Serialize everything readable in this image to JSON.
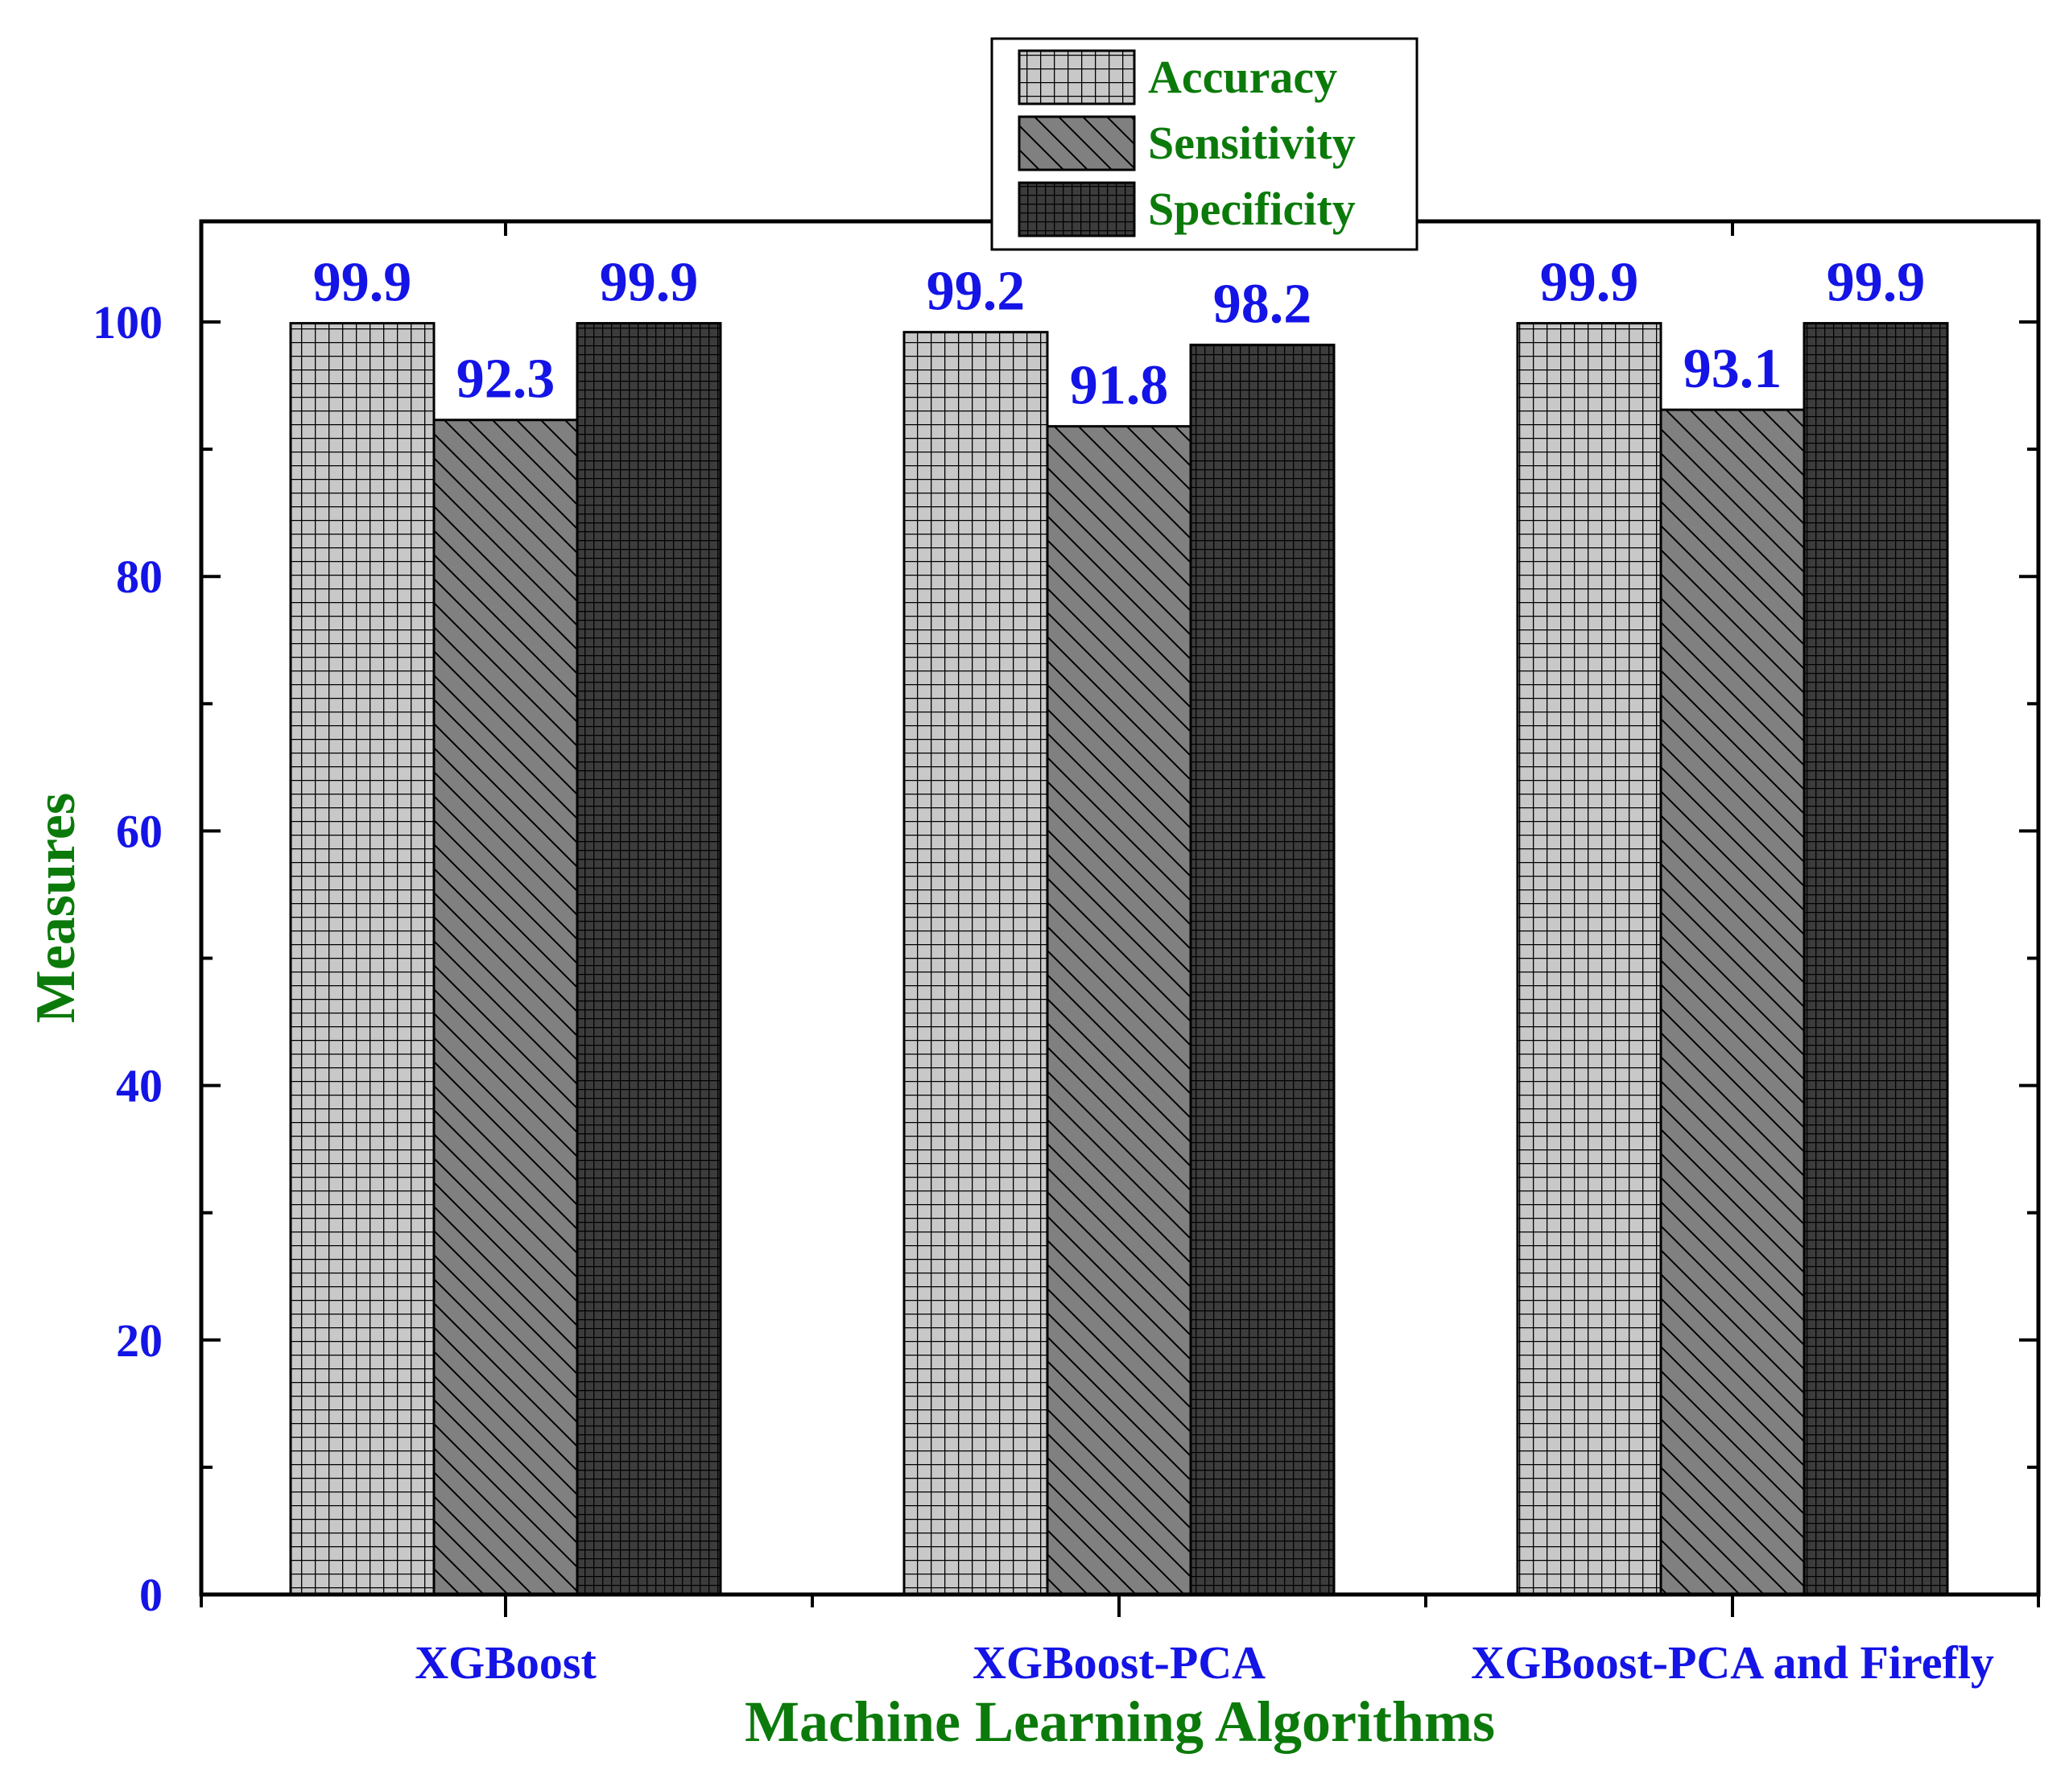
{
  "chart_data": {
    "type": "bar",
    "xlabel": "Machine Learning Algorithms",
    "ylabel": "Measures",
    "ylim": [
      0,
      108
    ],
    "yticks": [
      0,
      20,
      40,
      60,
      80,
      100
    ],
    "y_minor_step": 10,
    "grid": false,
    "legend_position": "top-center",
    "categories": [
      "XGBoost",
      "XGBoost-PCA",
      "XGBoost-PCA and Firefly"
    ],
    "series": [
      {
        "name": "Accuracy",
        "values": [
          99.9,
          99.2,
          99.9
        ],
        "labels": [
          "99.9",
          "99.2",
          "99.9"
        ],
        "fill": "#c8c8c8",
        "pattern": "grid"
      },
      {
        "name": "Sensitivity",
        "values": [
          92.3,
          91.8,
          93.1
        ],
        "labels": [
          "92.3",
          "91.8",
          "93.1"
        ],
        "fill": "#808080",
        "pattern": "diagonal"
      },
      {
        "name": "Specificity",
        "values": [
          99.9,
          98.2,
          99.9
        ],
        "labels": [
          "99.9",
          "98.2",
          "99.9"
        ],
        "fill": "#3c3c3c",
        "pattern": "dense-grid"
      }
    ],
    "colors": {
      "tick_labels": "#1414e6",
      "axis_titles": "#0b7a0b",
      "data_labels": "#1414e6",
      "legend_text": "#0b7a0b"
    }
  }
}
